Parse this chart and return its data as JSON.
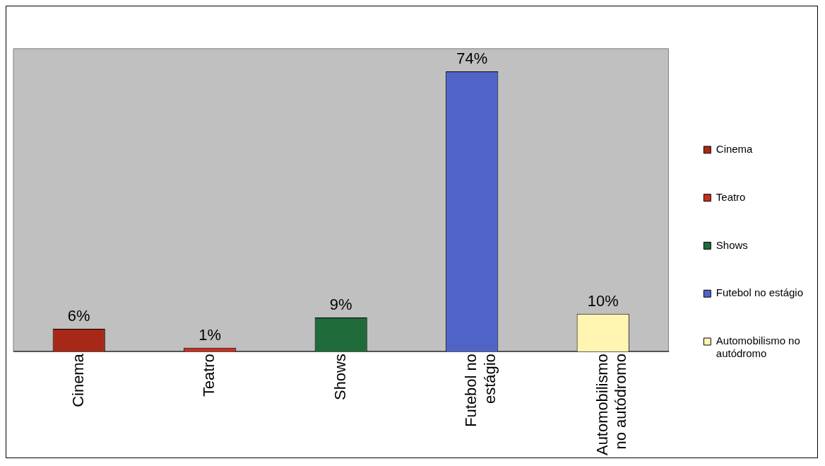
{
  "chart_data": {
    "type": "bar",
    "categories": [
      "Cinema",
      "Teatro",
      "Shows",
      "Futebol no estágio",
      "Automobilismo no autódromo"
    ],
    "series": [
      {
        "name": "Cinema",
        "color": "#a82818",
        "values": [
          6,
          null,
          null,
          null,
          null
        ],
        "value_labels": [
          "6%",
          null,
          null,
          null,
          null
        ]
      },
      {
        "name": "Teatro",
        "color": "#c83020",
        "values": [
          null,
          1,
          null,
          null,
          null
        ],
        "value_labels": [
          null,
          "1%",
          null,
          null,
          null
        ]
      },
      {
        "name": "Shows",
        "color": "#1f6b3a",
        "values": [
          null,
          null,
          9,
          null,
          null
        ],
        "value_labels": [
          null,
          null,
          "9%",
          null,
          null
        ]
      },
      {
        "name": "Futebol no estágio",
        "color": "#5064c8",
        "values": [
          null,
          null,
          null,
          74,
          null
        ],
        "value_labels": [
          null,
          null,
          null,
          "74%",
          null
        ]
      },
      {
        "name": "Automobilismo no autódromo",
        "color": "#fff4b0",
        "values": [
          null,
          null,
          null,
          null,
          10
        ],
        "value_labels": [
          null,
          null,
          null,
          null,
          "10%"
        ]
      }
    ],
    "legend": "right",
    "grid": false
  }
}
